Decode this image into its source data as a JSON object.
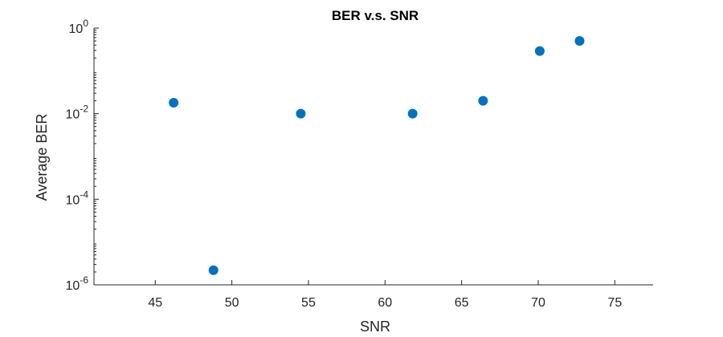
{
  "chart_data": {
    "type": "scatter",
    "title": "BER v.s. SNR",
    "xlabel": "SNR",
    "ylabel": "Average BER",
    "xlim": [
      41,
      77.5
    ],
    "ylim": [
      1e-06,
      1
    ],
    "yscale": "log",
    "grid": false,
    "xticks": [
      45,
      50,
      55,
      60,
      65,
      70,
      75
    ],
    "xtick_labels": [
      "45",
      "50",
      "55",
      "60",
      "65",
      "70",
      "75"
    ],
    "yticks": [
      1e-06,
      0.0001,
      0.01,
      1
    ],
    "ytick_labels": [
      {
        "base": "10",
        "exp": "-6"
      },
      {
        "base": "10",
        "exp": "-4"
      },
      {
        "base": "10",
        "exp": "-2"
      },
      {
        "base": "10",
        "exp": "0"
      }
    ],
    "marker_color": "#0072BD",
    "x": [
      46.2,
      48.8,
      54.5,
      61.8,
      66.4,
      70.1,
      72.7
    ],
    "y": [
      0.018,
      2.2e-06,
      0.01,
      0.01,
      0.02,
      0.29,
      0.5
    ]
  }
}
